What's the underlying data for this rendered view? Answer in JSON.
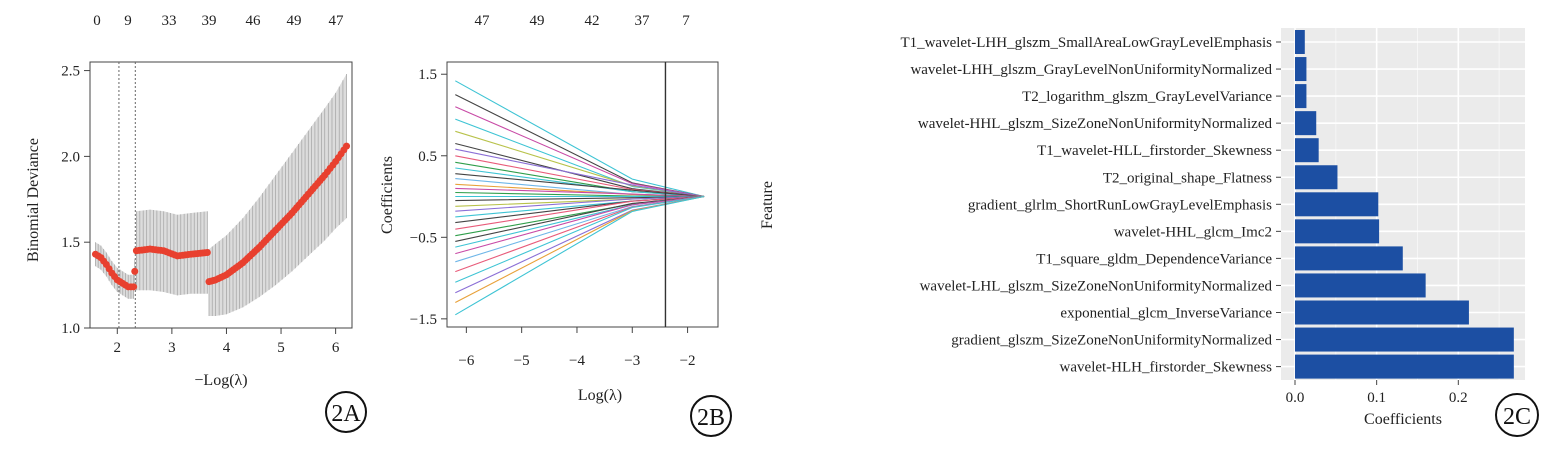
{
  "chart_data": [
    {
      "panel": "2A",
      "type": "scatter",
      "xlabel": "−Log(λ)",
      "ylabel": "Binomial Deviance",
      "xlim": [
        1.5,
        6.3
      ],
      "ylim": [
        1.0,
        2.55
      ],
      "xticks": [
        "2",
        "3",
        "4",
        "5",
        "6"
      ],
      "yticks": [
        "1.0",
        "1.5",
        "2.0",
        "2.5"
      ],
      "top_labels": [
        "0",
        "9",
        "33",
        "39",
        "46",
        "49",
        "47"
      ],
      "vlines": [
        2.03,
        2.33
      ],
      "grid": false,
      "point_color": "#e8402f",
      "series": [
        {
          "x": [
            1.6,
            1.7,
            1.8,
            1.9,
            2.0,
            2.1,
            2.2,
            2.3
          ],
          "y": [
            1.43,
            1.41,
            1.37,
            1.32,
            1.28,
            1.26,
            1.24,
            1.24
          ],
          "lo": [
            1.36,
            1.34,
            1.3,
            1.25,
            1.21,
            1.19,
            1.17,
            1.17
          ],
          "hi": [
            1.5,
            1.48,
            1.44,
            1.39,
            1.35,
            1.33,
            1.31,
            1.31
          ]
        },
        {
          "x": [
            2.32
          ],
          "y": [
            1.33
          ],
          "lo": [
            1.26
          ],
          "hi": [
            1.4
          ]
        },
        {
          "x": [
            2.35,
            2.6,
            2.85,
            3.1,
            3.35,
            3.65
          ],
          "y": [
            1.45,
            1.46,
            1.45,
            1.42,
            1.43,
            1.44
          ],
          "lo": [
            1.22,
            1.22,
            1.21,
            1.19,
            1.2,
            1.2
          ],
          "hi": [
            1.68,
            1.69,
            1.68,
            1.66,
            1.67,
            1.68
          ]
        },
        {
          "x": [
            3.68,
            3.8,
            4.0,
            4.3,
            4.6,
            4.9,
            5.2,
            5.5,
            5.8,
            6.0,
            6.2
          ],
          "y": [
            1.27,
            1.28,
            1.31,
            1.38,
            1.47,
            1.57,
            1.67,
            1.78,
            1.89,
            1.97,
            2.06
          ],
          "lo": [
            1.07,
            1.07,
            1.08,
            1.12,
            1.18,
            1.25,
            1.33,
            1.42,
            1.51,
            1.58,
            1.64
          ],
          "hi": [
            1.46,
            1.49,
            1.54,
            1.64,
            1.76,
            1.89,
            2.02,
            2.15,
            2.28,
            2.37,
            2.48
          ]
        }
      ]
    },
    {
      "panel": "2B",
      "type": "line",
      "xlabel": "Log(λ)",
      "ylabel": "Coefficients",
      "xlim": [
        -6.35,
        -1.45
      ],
      "ylim": [
        -1.6,
        1.65
      ],
      "xticks": [
        "−6",
        "−5",
        "−4",
        "−3",
        "−2"
      ],
      "yticks": [
        "1.5",
        "0.5",
        "−0.5",
        "−1.5"
      ],
      "top_labels": [
        "47",
        "49",
        "42",
        "37",
        "7"
      ],
      "vline": -2.4,
      "converge_x": -1.7,
      "start_x": -6.2,
      "grid": false,
      "series": [
        {
          "start": 1.42,
          "end": 0.05,
          "color": "#3ec4d4"
        },
        {
          "start": 1.25,
          "end": 0.02,
          "color": "#444444"
        },
        {
          "start": 1.1,
          "end": 0.03,
          "color": "#c84aa6"
        },
        {
          "start": 0.95,
          "end": 0.01,
          "color": "#3ec4d4"
        },
        {
          "start": 0.8,
          "end": 0.04,
          "color": "#b8c24a"
        },
        {
          "start": 0.65,
          "end": 0.02,
          "color": "#444444"
        },
        {
          "start": 0.58,
          "end": 0.08,
          "color": "#8b6fd6"
        },
        {
          "start": 0.5,
          "end": 0.03,
          "color": "#e85b7a"
        },
        {
          "start": 0.42,
          "end": 0.01,
          "color": "#2f9e4a"
        },
        {
          "start": 0.35,
          "end": 0.02,
          "color": "#3ec4d4"
        },
        {
          "start": 0.28,
          "end": 0.05,
          "color": "#444444"
        },
        {
          "start": 0.22,
          "end": 0.0,
          "color": "#6fb6e8"
        },
        {
          "start": 0.15,
          "end": 0.01,
          "color": "#e8a13a"
        },
        {
          "start": 0.1,
          "end": 0.02,
          "color": "#c84aa6"
        },
        {
          "start": 0.05,
          "end": 0.0,
          "color": "#2f9e4a"
        },
        {
          "start": 0.0,
          "end": 0.0,
          "color": "#3ec4d4"
        },
        {
          "start": -0.05,
          "end": -0.01,
          "color": "#444444"
        },
        {
          "start": -0.12,
          "end": -0.02,
          "color": "#b8c24a"
        },
        {
          "start": -0.18,
          "end": -0.01,
          "color": "#8b6fd6"
        },
        {
          "start": -0.25,
          "end": -0.03,
          "color": "#3ec4d4"
        },
        {
          "start": -0.32,
          "end": -0.02,
          "color": "#444444"
        },
        {
          "start": -0.4,
          "end": -0.01,
          "color": "#e85b7a"
        },
        {
          "start": -0.48,
          "end": -0.04,
          "color": "#2f9e4a"
        },
        {
          "start": -0.55,
          "end": -0.02,
          "color": "#444444"
        },
        {
          "start": -0.62,
          "end": -0.03,
          "color": "#3ec4d4"
        },
        {
          "start": -0.7,
          "end": -0.02,
          "color": "#c84aa6"
        },
        {
          "start": -0.8,
          "end": -0.03,
          "color": "#6fb6e8"
        },
        {
          "start": -0.92,
          "end": -0.02,
          "color": "#e85b7a"
        },
        {
          "start": -1.05,
          "end": -0.01,
          "color": "#3ec4d4"
        },
        {
          "start": -1.18,
          "end": -0.03,
          "color": "#8b6fd6"
        },
        {
          "start": -1.3,
          "end": -0.02,
          "color": "#e8a13a"
        },
        {
          "start": -1.45,
          "end": -0.01,
          "color": "#3ec4d4"
        }
      ]
    },
    {
      "panel": "2C",
      "type": "bar",
      "orientation": "horizontal",
      "xlabel": "Coefficients",
      "ylabel": "Feature",
      "xlim": [
        0,
        0.278
      ],
      "xticks": [
        "0.0",
        "0.1",
        "0.2"
      ],
      "grid": true,
      "bar_color": "#1c4fa3",
      "categories": [
        "T1_wavelet-LHH_glszm_SmallAreaLowGrayLevelEmphasis",
        "wavelet-LHH_glszm_GrayLevelNonUniformityNormalized",
        "T2_logarithm_glszm_GrayLevelVariance",
        "wavelet-HHL_glszm_SizeZoneNonUniformityNormalized",
        "T1_wavelet-HLL_firstorder_Skewness",
        "T2_original_shape_Flatness",
        "gradient_glrlm_ShortRunLowGrayLevelEmphasis",
        "wavelet-HHL_glcm_Imc2",
        "T1_square_gldm_DependenceVariance",
        "wavelet-LHL_glszm_SizeZoneNonUniformityNormalized",
        "exponential_glcm_InverseVariance",
        "gradient_glszm_SizeZoneNonUniformityNormalized",
        "wavelet-HLH_firstorder_Skewness"
      ],
      "values": [
        0.012,
        0.014,
        0.014,
        0.026,
        0.029,
        0.052,
        0.102,
        0.103,
        0.132,
        0.16,
        0.213,
        0.268,
        0.268
      ]
    }
  ],
  "panel_tags": [
    "2A",
    "2B",
    "2C"
  ]
}
